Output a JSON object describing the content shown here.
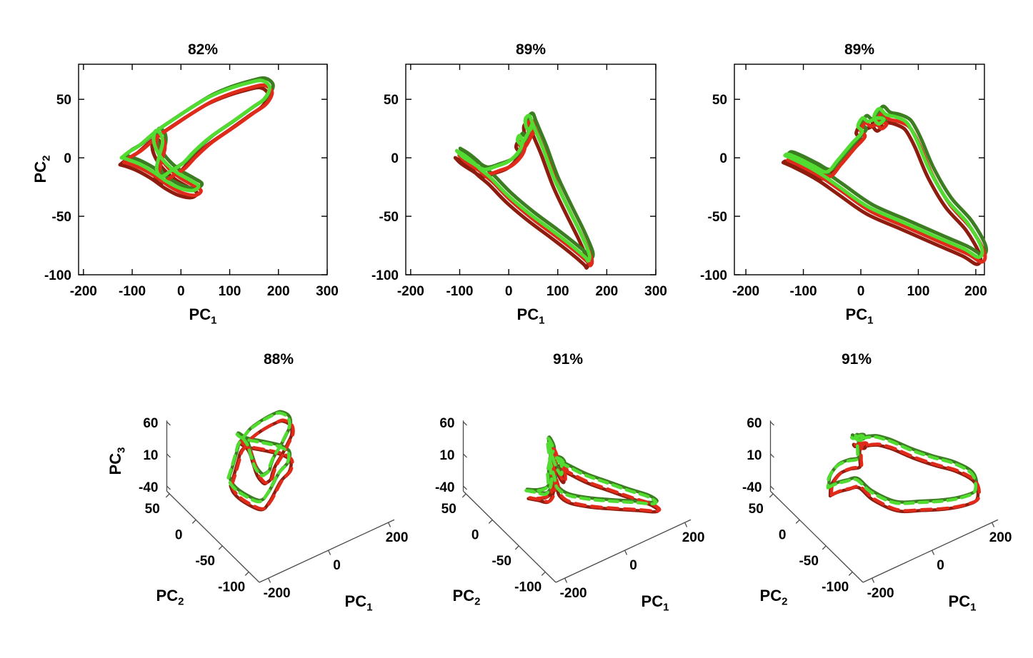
{
  "figure": {
    "background": "#ffffff",
    "axis_color_2d": "#000000",
    "axis_color_3d": "#4a4a4a"
  },
  "colors": {
    "dark_red": "#8E1C0F",
    "bright_red": "#E02B1B",
    "dark_green": "#3C7D22",
    "bright_green": "#52DB30"
  },
  "series_meta": [
    {
      "name": "red-trial-dark",
      "color_key": "dark_red",
      "offset": [
        -5,
        -4,
        -3
      ],
      "dash3d": ""
    },
    {
      "name": "green-trial-dark",
      "color_key": "dark_green",
      "offset": [
        5,
        4,
        3
      ],
      "dash3d": ""
    },
    {
      "name": "red-trial-bright",
      "color_key": "bright_red",
      "offset": [
        3,
        -2,
        -5
      ],
      "dash3d": "14 9"
    },
    {
      "name": "green-trial-bright",
      "color_key": "bright_green",
      "offset": [
        -2,
        2,
        4
      ],
      "dash3d": "12 8"
    }
  ],
  "chart_data": [
    {
      "id": "pc1-pc2-left",
      "type": "line",
      "projection": "2d",
      "title": "82%",
      "variance_explained_pct": 82,
      "xlabel": {
        "main": "PC",
        "sub": "1"
      },
      "ylabel": {
        "main": "PC",
        "sub": "2"
      },
      "xlim": [
        -210,
        300
      ],
      "ylim": [
        -100,
        80
      ],
      "xticks": [
        -200,
        -100,
        0,
        100,
        200,
        300
      ],
      "yticks": [
        -100,
        -50,
        0,
        50
      ],
      "grid": false,
      "legend": null,
      "base_path": [
        [
          -120,
          -2
        ],
        [
          -105,
          3
        ],
        [
          -85,
          8
        ],
        [
          -60,
          17
        ],
        [
          -45,
          22
        ],
        [
          -20,
          29
        ],
        [
          20,
          40
        ],
        [
          60,
          50
        ],
        [
          100,
          57
        ],
        [
          140,
          62
        ],
        [
          168,
          64
        ],
        [
          184,
          58
        ],
        [
          172,
          48
        ],
        [
          145,
          40
        ],
        [
          105,
          28
        ],
        [
          60,
          15
        ],
        [
          28,
          3
        ],
        [
          5,
          -7
        ],
        [
          -18,
          -13
        ],
        [
          -38,
          -18
        ],
        [
          -48,
          -12
        ],
        [
          -43,
          -1
        ],
        [
          -36,
          10
        ],
        [
          -39,
          18
        ],
        [
          -50,
          21
        ],
        [
          -54,
          13
        ],
        [
          -46,
          3
        ],
        [
          -28,
          -7
        ],
        [
          -5,
          -15
        ],
        [
          20,
          -21
        ],
        [
          38,
          -26
        ],
        [
          26,
          -30
        ],
        [
          0,
          -28
        ],
        [
          -28,
          -22
        ],
        [
          -55,
          -14
        ],
        [
          -85,
          -7
        ],
        [
          -110,
          -3
        ],
        [
          -120,
          -2
        ]
      ]
    },
    {
      "id": "pc1-pc2-middle",
      "type": "line",
      "projection": "2d",
      "title": "89%",
      "variance_explained_pct": 89,
      "xlabel": {
        "main": "PC",
        "sub": "1"
      },
      "xlim": [
        -210,
        300
      ],
      "ylim": [
        -100,
        80
      ],
      "xticks": [
        -200,
        -100,
        0,
        100,
        200,
        300
      ],
      "yticks": [
        -100,
        -50,
        0,
        50
      ],
      "grid": false,
      "legend": null,
      "base_path": [
        [
          -104,
          4
        ],
        [
          -88,
          0
        ],
        [
          -70,
          -6
        ],
        [
          -55,
          -12
        ],
        [
          -35,
          -19
        ],
        [
          0,
          -34
        ],
        [
          45,
          -50
        ],
        [
          90,
          -64
        ],
        [
          130,
          -77
        ],
        [
          158,
          -87
        ],
        [
          164,
          -90
        ],
        [
          166,
          -84
        ],
        [
          148,
          -66
        ],
        [
          122,
          -44
        ],
        [
          95,
          -20
        ],
        [
          72,
          6
        ],
        [
          58,
          20
        ],
        [
          50,
          28
        ],
        [
          44,
          34
        ],
        [
          36,
          31
        ],
        [
          38,
          24
        ],
        [
          46,
          22
        ],
        [
          50,
          27
        ],
        [
          40,
          18
        ],
        [
          28,
          10
        ],
        [
          20,
          13
        ],
        [
          24,
          17
        ],
        [
          30,
          11
        ],
        [
          22,
          3
        ],
        [
          2,
          -5
        ],
        [
          -22,
          -9
        ],
        [
          -48,
          -12
        ],
        [
          -70,
          -7
        ],
        [
          -92,
          -1
        ],
        [
          -104,
          4
        ]
      ]
    },
    {
      "id": "pc1-pc2-right",
      "type": "line",
      "projection": "2d",
      "title": "89%",
      "variance_explained_pct": 89,
      "xlabel": {
        "main": "PC",
        "sub": "1"
      },
      "xlim": [
        -220,
        215
      ],
      "ylim": [
        -100,
        80
      ],
      "xticks": [
        -200,
        -100,
        0,
        100,
        200
      ],
      "yticks": [
        -100,
        -50,
        0,
        50
      ],
      "grid": false,
      "legend": null,
      "base_path": [
        [
          -130,
          0
        ],
        [
          -112,
          -4
        ],
        [
          -88,
          -10
        ],
        [
          -64,
          -17
        ],
        [
          -35,
          -27
        ],
        [
          15,
          -44
        ],
        [
          75,
          -57
        ],
        [
          135,
          -70
        ],
        [
          182,
          -80
        ],
        [
          207,
          -87
        ],
        [
          212,
          -79
        ],
        [
          188,
          -58
        ],
        [
          152,
          -38
        ],
        [
          122,
          -13
        ],
        [
          101,
          11
        ],
        [
          90,
          22
        ],
        [
          80,
          29
        ],
        [
          63,
          33
        ],
        [
          46,
          35
        ],
        [
          34,
          40
        ],
        [
          25,
          33
        ],
        [
          33,
          27
        ],
        [
          42,
          31
        ],
        [
          30,
          32
        ],
        [
          15,
          29
        ],
        [
          5,
          32
        ],
        [
          -3,
          25
        ],
        [
          4,
          20
        ],
        [
          -14,
          10
        ],
        [
          -38,
          -4
        ],
        [
          -57,
          -14
        ],
        [
          -80,
          -9
        ],
        [
          -104,
          -3
        ],
        [
          -124,
          1
        ],
        [
          -130,
          0
        ]
      ]
    },
    {
      "id": "pc1-pc2-pc3-left",
      "type": "line",
      "projection": "3d",
      "title": "88%",
      "variance_explained_pct": 88,
      "xlabel": {
        "main": "PC",
        "sub": "1"
      },
      "ylabel": {
        "main": "PC",
        "sub": "2"
      },
      "zlabel": {
        "main": "PC",
        "sub": "3"
      },
      "xlim": [
        -230,
        220
      ],
      "ylim": [
        -120,
        55
      ],
      "zlim": [
        -48,
        62
      ],
      "xticks": [
        -200,
        0,
        200
      ],
      "yticks": [
        50,
        0,
        -50,
        -100
      ],
      "zticks": [
        60,
        10,
        -40
      ],
      "grid": false,
      "legend": null,
      "base_path": [
        [
          -120,
          -2,
          -10
        ],
        [
          -100,
          3,
          -2
        ],
        [
          -60,
          17,
          3
        ],
        [
          -45,
          22,
          6
        ],
        [
          -20,
          29,
          3
        ],
        [
          20,
          40,
          -2
        ],
        [
          60,
          50,
          -10
        ],
        [
          100,
          57,
          -16
        ],
        [
          140,
          62,
          -21
        ],
        [
          168,
          64,
          -25
        ],
        [
          184,
          58,
          -30
        ],
        [
          172,
          48,
          -33
        ],
        [
          145,
          40,
          -35
        ],
        [
          105,
          28,
          -34
        ],
        [
          60,
          15,
          -31
        ],
        [
          28,
          3,
          -27
        ],
        [
          5,
          -7,
          -23
        ],
        [
          -18,
          -13,
          -18
        ],
        [
          -38,
          -18,
          -11
        ],
        [
          -48,
          -12,
          -2
        ],
        [
          -43,
          -1,
          7
        ],
        [
          -36,
          10,
          14
        ],
        [
          -39,
          18,
          19
        ],
        [
          -50,
          21,
          24
        ],
        [
          -54,
          13,
          27
        ],
        [
          -46,
          3,
          29
        ],
        [
          -28,
          -7,
          30
        ],
        [
          -5,
          -15,
          28
        ],
        [
          20,
          -21,
          23
        ],
        [
          38,
          -26,
          14
        ],
        [
          26,
          -30,
          3
        ],
        [
          0,
          -28,
          -9
        ],
        [
          -40,
          -30,
          -30
        ],
        [
          -65,
          -28,
          -38
        ],
        [
          -90,
          -10,
          -35
        ],
        [
          -112,
          -4,
          -22
        ],
        [
          -120,
          -2,
          -10
        ]
      ]
    },
    {
      "id": "pc1-pc2-pc3-middle",
      "type": "line",
      "projection": "3d",
      "title": "91%",
      "variance_explained_pct": 91,
      "xlabel": {
        "main": "PC",
        "sub": "1"
      },
      "ylabel": {
        "main": "PC",
        "sub": "2"
      },
      "xlim": [
        -230,
        220
      ],
      "ylim": [
        -120,
        55
      ],
      "zlim": [
        -48,
        62
      ],
      "xticks": [
        -200,
        0,
        200
      ],
      "yticks": [
        50,
        0,
        -50,
        -100
      ],
      "zticks": [
        60,
        10,
        -40
      ],
      "grid": false,
      "legend": null,
      "base_path": [
        [
          -105,
          4,
          -38
        ],
        [
          -85,
          -2,
          -40
        ],
        [
          -62,
          -10,
          -41
        ],
        [
          -52,
          -14,
          -20
        ],
        [
          -50,
          -9,
          8
        ],
        [
          -46,
          -14,
          28
        ],
        [
          -50,
          -7,
          40
        ],
        [
          -45,
          -3,
          26
        ],
        [
          -50,
          -11,
          6
        ],
        [
          -46,
          -16,
          -14
        ],
        [
          -40,
          -18,
          -30
        ],
        [
          -20,
          -26,
          -39
        ],
        [
          20,
          -42,
          -41
        ],
        [
          70,
          -58,
          -42
        ],
        [
          120,
          -74,
          -42
        ],
        [
          155,
          -86,
          -42
        ],
        [
          163,
          -89,
          -38
        ],
        [
          150,
          -80,
          -34
        ],
        [
          120,
          -62,
          -33
        ],
        [
          90,
          -40,
          -33
        ],
        [
          60,
          -16,
          -34
        ],
        [
          45,
          5,
          -36
        ],
        [
          38,
          20,
          -38
        ],
        [
          42,
          30,
          -40
        ],
        [
          50,
          26,
          -41
        ],
        [
          44,
          18,
          -39
        ],
        [
          33,
          22,
          -36
        ],
        [
          26,
          12,
          -32
        ],
        [
          -8,
          -8,
          -24
        ],
        [
          -33,
          -14,
          -6
        ],
        [
          -44,
          -10,
          16
        ],
        [
          -48,
          -6,
          34
        ],
        [
          -52,
          -12,
          18
        ],
        [
          -56,
          -9,
          -8
        ],
        [
          -62,
          -12,
          -28
        ],
        [
          -82,
          -4,
          -37
        ],
        [
          -105,
          4,
          -38
        ]
      ]
    },
    {
      "id": "pc1-pc2-pc3-right",
      "type": "line",
      "projection": "3d",
      "title": "91%",
      "variance_explained_pct": 91,
      "xlabel": {
        "main": "PC",
        "sub": "1"
      },
      "ylabel": {
        "main": "PC",
        "sub": "2"
      },
      "xlim": [
        -230,
        220
      ],
      "ylim": [
        -120,
        55
      ],
      "zlim": [
        -48,
        62
      ],
      "xticks": [
        -200,
        0,
        200
      ],
      "yticks": [
        50,
        0,
        -50,
        -100
      ],
      "zticks": [
        60,
        10,
        -40
      ],
      "grid": false,
      "legend": null,
      "base_path": [
        [
          -130,
          0,
          -25
        ],
        [
          -112,
          -4,
          -20
        ],
        [
          -88,
          -10,
          -16
        ],
        [
          -64,
          -17,
          -13
        ],
        [
          -35,
          -27,
          -30
        ],
        [
          15,
          -44,
          -44
        ],
        [
          75,
          -57,
          -46
        ],
        [
          135,
          -70,
          -46
        ],
        [
          182,
          -80,
          -42
        ],
        [
          207,
          -87,
          -32
        ],
        [
          212,
          -79,
          -14
        ],
        [
          188,
          -58,
          -9
        ],
        [
          152,
          -38,
          -8
        ],
        [
          122,
          -13,
          -10
        ],
        [
          101,
          11,
          -12
        ],
        [
          90,
          22,
          -14
        ],
        [
          80,
          29,
          -15
        ],
        [
          63,
          33,
          -15
        ],
        [
          46,
          35,
          -14
        ],
        [
          34,
          40,
          -12
        ],
        [
          25,
          33,
          -10
        ],
        [
          33,
          27,
          -8
        ],
        [
          42,
          31,
          -7
        ],
        [
          30,
          32,
          -5
        ],
        [
          15,
          29,
          -3
        ],
        [
          5,
          32,
          0
        ],
        [
          -3,
          25,
          4
        ],
        [
          4,
          20,
          7
        ],
        [
          -14,
          10,
          10
        ],
        [
          -38,
          -4,
          13
        ],
        [
          -57,
          -14,
          15
        ],
        [
          -80,
          -9,
          13
        ],
        [
          -104,
          -3,
          6
        ],
        [
          -124,
          1,
          -10
        ],
        [
          -130,
          0,
          -25
        ]
      ]
    }
  ]
}
